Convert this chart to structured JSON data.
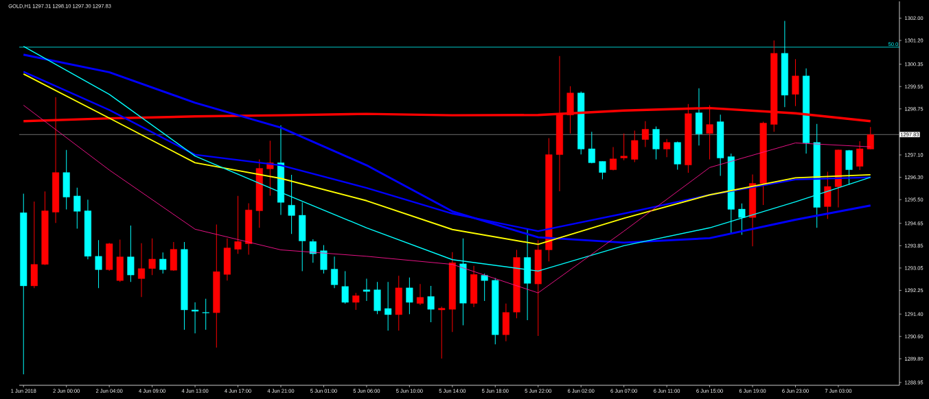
{
  "chart_data": {
    "type": "candlestick",
    "title": "GOLD,H1 1297.31 1298.10 1297.30 1297.83",
    "categories": [
      "1 Jun 2018",
      null,
      null,
      null,
      "2 Jun 00:00",
      null,
      null,
      null,
      "2 Jun 04:00",
      null,
      null,
      null,
      "4 Jun 09:00",
      null,
      null,
      null,
      "4 Jun 13:00",
      null,
      null,
      null,
      "4 Jun 17:00",
      null,
      null,
      null,
      "4 Jun 21:00",
      null,
      null,
      null,
      "5 Jun 01:00",
      null,
      null,
      null,
      "5 Jun 06:00",
      null,
      null,
      null,
      "5 Jun 10:00",
      null,
      null,
      null,
      "5 Jun 14:00",
      null,
      null,
      null,
      "5 Jun 18:00",
      null,
      null,
      null,
      "5 Jun 22:00",
      null,
      null,
      null,
      "6 Jun 02:00",
      null,
      null,
      null,
      "6 Jun 07:00",
      null,
      null,
      null,
      "6 Jun 11:00",
      null,
      null,
      null,
      "6 Jun 15:00",
      null,
      null,
      null,
      "6 Jun 19:00",
      null,
      null,
      null,
      "6 Jun 23:00",
      null,
      null,
      null,
      "7 Jun 03:00",
      null,
      null,
      null
    ],
    "ohlc": [
      [
        1295.03,
        1295.71,
        1289.24,
        1292.41
      ],
      [
        1292.41,
        1295.43,
        1292.33,
        1293.18
      ],
      [
        1293.18,
        1295.79,
        1293.16,
        1295.1
      ],
      [
        1295.05,
        1299.17,
        1294.66,
        1296.47
      ],
      [
        1296.47,
        1297.28,
        1295.15,
        1295.59
      ],
      [
        1295.63,
        1295.93,
        1294.46,
        1295.08
      ],
      [
        1295.1,
        1295.5,
        1293.36,
        1293.47
      ],
      [
        1293.47,
        1294.05,
        1292.33,
        1292.99
      ],
      [
        1292.99,
        1293.95,
        1292.95,
        1293.92
      ],
      [
        1292.6,
        1294.07,
        1292.55,
        1293.45
      ],
      [
        1293.45,
        1294.57,
        1292.55,
        1292.8
      ],
      [
        1292.67,
        1293.94,
        1292.01,
        1293.03
      ],
      [
        1293.03,
        1294.11,
        1292.8,
        1293.37
      ],
      [
        1293.37,
        1293.61,
        1292.85,
        1292.99
      ],
      [
        1292.97,
        1293.98,
        1292.95,
        1293.72
      ],
      [
        1293.72,
        1293.98,
        1290.84,
        1291.55
      ],
      [
        1291.55,
        1291.82,
        1290.71,
        1291.5
      ],
      [
        1291.46,
        1291.95,
        1290.84,
        1291.44
      ],
      [
        1291.45,
        1294.61,
        1290.2,
        1292.92
      ],
      [
        1292.82,
        1294.11,
        1292.6,
        1293.77
      ],
      [
        1293.72,
        1295.63,
        1293.56,
        1294.0
      ],
      [
        1293.92,
        1295.37,
        1293.53,
        1295.13
      ],
      [
        1295.1,
        1296.94,
        1294.49,
        1296.62
      ],
      [
        1296.6,
        1297.61,
        1295.64,
        1296.82
      ],
      [
        1296.82,
        1298.16,
        1294.95,
        1295.4
      ],
      [
        1295.3,
        1296.39,
        1294.27,
        1294.93
      ],
      [
        1294.94,
        1295.4,
        1292.94,
        1294.02
      ],
      [
        1294.0,
        1294.08,
        1293.24,
        1293.56
      ],
      [
        1293.67,
        1293.87,
        1292.85,
        1292.99
      ],
      [
        1293.01,
        1293.46,
        1292.33,
        1292.45
      ],
      [
        1292.39,
        1292.94,
        1291.77,
        1291.82
      ],
      [
        1291.82,
        1292.16,
        1291.55,
        1292.06
      ],
      [
        1292.27,
        1292.67,
        1291.87,
        1292.21
      ],
      [
        1292.27,
        1292.55,
        1291.4,
        1291.52
      ],
      [
        1291.6,
        1292.55,
        1290.81,
        1291.38
      ],
      [
        1291.38,
        1292.77,
        1290.81,
        1292.34
      ],
      [
        1292.34,
        1292.71,
        1291.4,
        1291.82
      ],
      [
        1291.78,
        1292.48,
        1291.72,
        1292.0
      ],
      [
        1292.03,
        1292.41,
        1291.11,
        1291.57
      ],
      [
        1291.55,
        1291.67,
        1289.81,
        1291.61
      ],
      [
        1291.57,
        1293.62,
        1290.76,
        1293.24
      ],
      [
        1293.2,
        1294.11,
        1291.0,
        1291.79
      ],
      [
        1291.78,
        1293.13,
        1291.65,
        1292.82
      ],
      [
        1292.79,
        1292.85,
        1291.87,
        1292.6
      ],
      [
        1292.61,
        1292.69,
        1290.32,
        1290.66
      ],
      [
        1290.66,
        1291.78,
        1290.43,
        1291.46
      ],
      [
        1291.47,
        1293.7,
        1291.25,
        1293.43
      ],
      [
        1293.43,
        1294.43,
        1291.18,
        1292.5
      ],
      [
        1292.48,
        1294.05,
        1290.62,
        1293.7
      ],
      [
        1293.7,
        1297.7,
        1293.29,
        1297.11
      ],
      [
        1297.11,
        1300.64,
        1295.8,
        1298.56
      ],
      [
        1298.53,
        1299.56,
        1297.87,
        1299.32
      ],
      [
        1299.32,
        1299.37,
        1297.12,
        1297.31
      ],
      [
        1297.32,
        1297.93,
        1296.8,
        1296.82
      ],
      [
        1296.87,
        1296.87,
        1296.23,
        1296.47
      ],
      [
        1296.57,
        1297.38,
        1296.55,
        1296.96
      ],
      [
        1296.99,
        1297.87,
        1296.91,
        1297.06
      ],
      [
        1296.94,
        1297.97,
        1296.84,
        1297.62
      ],
      [
        1297.65,
        1298.31,
        1297.38,
        1298.02
      ],
      [
        1298.02,
        1298.12,
        1296.94,
        1297.31
      ],
      [
        1297.31,
        1297.67,
        1297.02,
        1297.55
      ],
      [
        1297.55,
        1297.58,
        1296.57,
        1296.77
      ],
      [
        1296.74,
        1298.92,
        1296.46,
        1298.58
      ],
      [
        1298.61,
        1299.49,
        1297.44,
        1297.85
      ],
      [
        1297.87,
        1298.88,
        1296.94,
        1298.19
      ],
      [
        1298.29,
        1298.54,
        1296.35,
        1296.99
      ],
      [
        1297.04,
        1297.15,
        1294.27,
        1295.15
      ],
      [
        1295.16,
        1295.36,
        1294.24,
        1294.86
      ],
      [
        1294.86,
        1296.4,
        1293.83,
        1296.08
      ],
      [
        1296.08,
        1298.29,
        1295.31,
        1298.24
      ],
      [
        1298.19,
        1301.2,
        1297.93,
        1300.74
      ],
      [
        1300.74,
        1301.9,
        1298.81,
        1299.24
      ],
      [
        1299.27,
        1300.53,
        1298.85,
        1299.93
      ],
      [
        1299.93,
        1300.2,
        1297.15,
        1297.53
      ],
      [
        1297.55,
        1298.21,
        1294.49,
        1295.22
      ],
      [
        1295.25,
        1296.5,
        1294.81,
        1295.97
      ],
      [
        1295.96,
        1297.29,
        1295.22,
        1297.28
      ],
      [
        1297.26,
        1297.28,
        1296.03,
        1296.57
      ],
      [
        1296.69,
        1297.59,
        1296.56,
        1297.32
      ],
      [
        1297.31,
        1298.1,
        1297.3,
        1297.83
      ]
    ],
    "colors": [
      "#00ffff",
      "#ff0000",
      "#ff0000",
      "#ff0000",
      "#00ffff",
      "#00ffff",
      "#00ffff",
      "#00ffff",
      "#ff0000",
      "#ff0000",
      "#00ffff",
      "#ff0000",
      "#ff0000",
      "#00ffff",
      "#ff0000",
      "#00ffff",
      "#00ffff",
      "#00ffff",
      "#ff0000",
      "#ff0000",
      "#ff0000",
      "#ff0000",
      "#ff0000",
      "#ff0000",
      "#00ffff",
      "#00ffff",
      "#00ffff",
      "#00ffff",
      "#00ffff",
      "#00ffff",
      "#00ffff",
      "#ff0000",
      "#00ffff",
      "#00ffff",
      "#00ffff",
      "#ff0000",
      "#00ffff",
      "#ff0000",
      "#00ffff",
      "#ff0000",
      "#ff0000",
      "#00ffff",
      "#ff0000",
      "#00ffff",
      "#00ffff",
      "#ff0000",
      "#ff0000",
      "#00ffff",
      "#ff0000",
      "#ff0000",
      "#ff0000",
      "#ff0000",
      "#00ffff",
      "#00ffff",
      "#00ffff",
      "#ff0000",
      "#ff0000",
      "#ff0000",
      "#ff0000",
      "#00ffff",
      "#ff0000",
      "#00ffff",
      "#ff0000",
      "#00ffff",
      "#ff0000",
      "#00ffff",
      "#00ffff",
      "#00ffff",
      "#ff0000",
      "#ff0000",
      "#ff0000",
      "#00ffff",
      "#ff0000",
      "#00ffff",
      "#00ffff",
      "#ff0000",
      "#ff0000",
      "#00ffff",
      "#ff0000",
      "#ff0000"
    ],
    "series": [
      {
        "type": "line",
        "color": "#ff0000",
        "values": [
          1298.31,
          null,
          null,
          null,
          null,
          null,
          null,
          null,
          1298.41,
          null,
          null,
          null,
          null,
          null,
          null,
          null,
          1298.48,
          null,
          null,
          null,
          null,
          null,
          null,
          null,
          1298.52,
          null,
          null,
          null,
          null,
          null,
          null,
          null,
          1298.57,
          null,
          null,
          null,
          null,
          null,
          null,
          null,
          1298.52,
          null,
          null,
          null,
          null,
          null,
          null,
          null,
          1298.53,
          null,
          null,
          null,
          null,
          null,
          null,
          null,
          1298.69,
          null,
          null,
          null,
          null,
          null,
          null,
          null,
          1298.78,
          null,
          null,
          null,
          null,
          null,
          null,
          null,
          1298.59,
          null,
          null,
          null,
          null,
          null,
          null,
          1298.31
        ]
      },
      {
        "type": "line",
        "color": "#0000ff",
        "values": [
          1300.69,
          null,
          null,
          null,
          null,
          null,
          null,
          null,
          1300.06,
          null,
          null,
          null,
          null,
          null,
          null,
          null,
          1298.97,
          null,
          null,
          null,
          null,
          null,
          null,
          null,
          1298.08,
          null,
          null,
          null,
          null,
          null,
          null,
          null,
          1296.73,
          null,
          null,
          null,
          null,
          null,
          null,
          null,
          1295.08,
          null,
          null,
          null,
          null,
          null,
          null,
          null,
          1294.15,
          null,
          null,
          null,
          null,
          null,
          null,
          null,
          1293.96,
          null,
          null,
          null,
          null,
          null,
          null,
          null,
          1294.12,
          null,
          null,
          null,
          null,
          null,
          null,
          null,
          1294.78,
          null,
          null,
          null,
          null,
          null,
          null,
          1295.29
        ]
      },
      {
        "type": "line",
        "color": "#0000ff",
        "values": [
          1300.08,
          null,
          null,
          null,
          null,
          null,
          null,
          null,
          1298.71,
          null,
          null,
          null,
          null,
          null,
          null,
          null,
          1297.11,
          null,
          null,
          null,
          null,
          null,
          null,
          null,
          1296.73,
          null,
          null,
          null,
          null,
          null,
          null,
          null,
          1295.92,
          null,
          null,
          null,
          null,
          null,
          null,
          null,
          1295.0,
          null,
          null,
          null,
          null,
          null,
          null,
          null,
          1294.37,
          null,
          null,
          null,
          null,
          null,
          null,
          null,
          1295.0,
          null,
          null,
          null,
          null,
          null,
          null,
          null,
          1295.67,
          null,
          null,
          null,
          null,
          null,
          null,
          null,
          1296.22,
          null,
          null,
          null,
          null,
          null,
          null,
          1296.3
        ]
      },
      {
        "type": "line",
        "color": "#ffff00",
        "values": [
          1300.0,
          null,
          null,
          null,
          null,
          null,
          null,
          null,
          1298.42,
          null,
          null,
          null,
          null,
          null,
          null,
          null,
          1296.82,
          null,
          null,
          null,
          null,
          null,
          null,
          null,
          1296.26,
          null,
          null,
          null,
          null,
          null,
          null,
          null,
          1295.46,
          null,
          null,
          null,
          null,
          null,
          null,
          null,
          1294.43,
          null,
          null,
          null,
          null,
          null,
          null,
          null,
          1293.9,
          null,
          null,
          null,
          null,
          null,
          null,
          null,
          1294.83,
          null,
          null,
          null,
          null,
          null,
          null,
          null,
          1295.67,
          null,
          null,
          null,
          null,
          null,
          null,
          null,
          1296.28,
          null,
          null,
          null,
          null,
          null,
          null,
          1296.39
        ]
      },
      {
        "type": "line",
        "color": "#00ffff",
        "values": [
          1300.99,
          null,
          null,
          null,
          null,
          null,
          null,
          null,
          1299.27,
          null,
          null,
          null,
          null,
          null,
          null,
          null,
          1297.06,
          null,
          null,
          null,
          null,
          null,
          null,
          null,
          1295.76,
          null,
          null,
          null,
          null,
          null,
          null,
          null,
          1294.49,
          null,
          null,
          null,
          null,
          null,
          null,
          null,
          1293.35,
          null,
          null,
          null,
          null,
          null,
          null,
          null,
          1292.94,
          null,
          null,
          null,
          null,
          null,
          null,
          null,
          1293.85,
          null,
          null,
          null,
          null,
          null,
          null,
          null,
          1294.49,
          null,
          null,
          null,
          null,
          null,
          null,
          null,
          1295.42,
          null,
          null,
          null,
          null,
          null,
          null,
          1296.3
        ]
      },
      {
        "type": "line",
        "color": "#ff1493",
        "values": [
          1298.88,
          null,
          null,
          null,
          null,
          null,
          null,
          null,
          1296.56,
          null,
          null,
          null,
          null,
          null,
          null,
          null,
          1294.44,
          null,
          null,
          null,
          null,
          null,
          null,
          null,
          1293.7,
          null,
          null,
          null,
          null,
          null,
          null,
          null,
          1293.47,
          null,
          null,
          null,
          null,
          null,
          null,
          null,
          1293.18,
          null,
          null,
          null,
          null,
          null,
          null,
          null,
          1292.16,
          null,
          null,
          null,
          null,
          null,
          null,
          null,
          1294.37,
          null,
          null,
          null,
          null,
          null,
          null,
          null,
          1296.65,
          null,
          null,
          null,
          null,
          null,
          null,
          null,
          1297.53,
          null,
          null,
          null,
          null,
          null,
          null,
          1297.39
        ]
      }
    ],
    "annotations": [
      {
        "text": "50.0",
        "y": 1300.96
      }
    ],
    "ref_lines": [
      {
        "axis": "y",
        "value": 1300.96,
        "color": "#00ffff"
      },
      {
        "axis": "y",
        "value": 1297.83,
        "label": "1297.83",
        "color": "#8c8c8c"
      }
    ],
    "ylim": [
      1288.85,
      1302.6
    ],
    "yticks": [
      {
        "value": 1302,
        "label": "1302.00"
      },
      {
        "value": 1301.2,
        "label": "1301.20"
      },
      {
        "value": 1300.35,
        "label": "1300.35"
      },
      {
        "value": 1299.55,
        "label": "1299.55"
      },
      {
        "value": 1298.75,
        "label": "1298.75"
      },
      {
        "value": 1297.1,
        "label": "1297.10"
      },
      {
        "value": 1296.3,
        "label": "1296.30"
      },
      {
        "value": 1295.5,
        "label": "1295.50"
      },
      {
        "value": 1294.65,
        "label": "1294.65"
      },
      {
        "value": 1293.85,
        "label": "1293.85"
      },
      {
        "value": 1293.05,
        "label": "1293.05"
      },
      {
        "value": 1292.25,
        "label": "1292.25"
      },
      {
        "value": 1291.4,
        "label": "1291.40"
      },
      {
        "value": 1290.6,
        "label": "1290.60"
      },
      {
        "value": 1289.8,
        "label": "1289.80"
      },
      {
        "value": 1288.95,
        "label": "1288.95"
      }
    ]
  }
}
